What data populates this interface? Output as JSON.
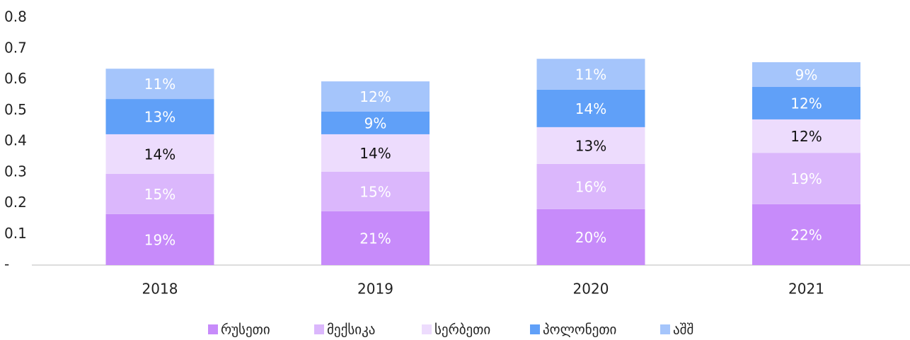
{
  "chart_data": {
    "type": "stacked-bar",
    "categories": [
      "2018",
      "2019",
      "2020",
      "2021"
    ],
    "ylim": [
      0,
      0.8
    ],
    "yticks": [
      {
        "value": 0,
        "label": "-"
      },
      0.1,
      0.2,
      0.3,
      0.4,
      0.5,
      0.6,
      0.7,
      0.8
    ],
    "legend": "bottom",
    "series": [
      {
        "name": "რუსეთი",
        "color": "#c78bfa",
        "label_color": "#ffffff",
        "values": [
          0.165,
          0.174,
          0.181,
          0.197
        ],
        "labels": [
          "19%",
          "21%",
          "20%",
          "22%"
        ]
      },
      {
        "name": "მექსიკა",
        "color": "#dbb7fc",
        "label_color": "#ffffff",
        "values": [
          0.13,
          0.128,
          0.146,
          0.166
        ],
        "labels": [
          "15%",
          "15%",
          "16%",
          "19%"
        ]
      },
      {
        "name": "სერბეთი",
        "color": "#eddcfd",
        "label_color": "#111111",
        "values": [
          0.128,
          0.121,
          0.119,
          0.108
        ],
        "labels": [
          "14%",
          "14%",
          "13%",
          "12%"
        ]
      },
      {
        "name": "პოლონეთი",
        "color": "#60a0f8",
        "label_color": "#ffffff",
        "values": [
          0.114,
          0.073,
          0.121,
          0.105
        ],
        "labels": [
          "13%",
          "9%",
          "14%",
          "12%"
        ]
      },
      {
        "name": "აშშ",
        "color": "#a5c5fb",
        "label_color": "#ffffff",
        "values": [
          0.098,
          0.098,
          0.1,
          0.08
        ],
        "labels": [
          "11%",
          "12%",
          "11%",
          "9%"
        ]
      }
    ]
  }
}
